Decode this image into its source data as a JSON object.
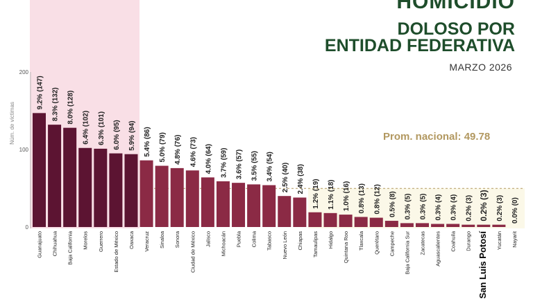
{
  "header": {
    "title_top": "HOMICIDIO",
    "title_line2": "DOLOSO POR",
    "title_line3": "ENTIDAD FEDERATIVA",
    "date": "MARZO 2026"
  },
  "colors": {
    "dark_bar": "#5c1432",
    "bar": "#8b2a45",
    "top_band": "#f9dfe6",
    "low_band": "#fbf8e8",
    "avg_line": "#b29860",
    "title": "#1e4d2b"
  },
  "chart_data": {
    "type": "bar",
    "ylabel": "Núm. de víctimas",
    "ylim": [
      0,
      200
    ],
    "yticks": [
      0,
      100,
      200
    ],
    "grid": false,
    "average": {
      "label": "Prom. nacional: 49.78",
      "value": 49.78
    },
    "categories": [
      "Guanajuato",
      "Chihuahua",
      "Baja California",
      "Morelos",
      "Guerrero",
      "Estado de México",
      "Oaxaca",
      "Veracruz",
      "Sinaloa",
      "Sonora",
      "Ciudad de México",
      "Jalisco",
      "Michoacán",
      "Puebla",
      "Colima",
      "Tabasco",
      "Nuevo León",
      "Chiapas",
      "Tamaulipas",
      "Hidalgo",
      "Quintana Roo",
      "Tlaxcala",
      "Querétaro",
      "Campeche",
      "Baja California Sur",
      "Zacatecas",
      "Aguascalientes",
      "Coahuila",
      "Durango",
      "San Luis Potosí",
      "Yucatán",
      "Nayarit"
    ],
    "values": [
      147,
      132,
      128,
      102,
      101,
      95,
      94,
      86,
      79,
      76,
      73,
      64,
      59,
      57,
      55,
      54,
      40,
      38,
      19,
      18,
      16,
      13,
      12,
      8,
      5,
      5,
      4,
      4,
      3,
      3,
      3,
      0
    ],
    "data_labels": [
      "9.2% (147)",
      "8.3% (132)",
      "8.0% (128)",
      "6.4% (102)",
      "6.3% (101)",
      "6.0% (95)",
      "5.9% (94)",
      "5.4% (86)",
      "5.0% (79)",
      "4.8% (76)",
      "4.6% (73)",
      "4.0% (64)",
      "3.7% (59)",
      "3.6% (57)",
      "3.5% (55)",
      "3.4% (54)",
      "2.5% (40)",
      "2.4% (38)",
      "1.2% (19)",
      "1.1% (18)",
      "1.0% (16)",
      "0.8% (13)",
      "0.8% (12)",
      "0.5% (8)",
      "0.3% (5)",
      "0.3% (5)",
      "0.3% (4)",
      "0.3% (4)",
      "0.2% (3)",
      "0.2% (3)",
      "0.2% (3)",
      "0.0% (0)"
    ],
    "highlighted": "San Luis Potosí"
  }
}
